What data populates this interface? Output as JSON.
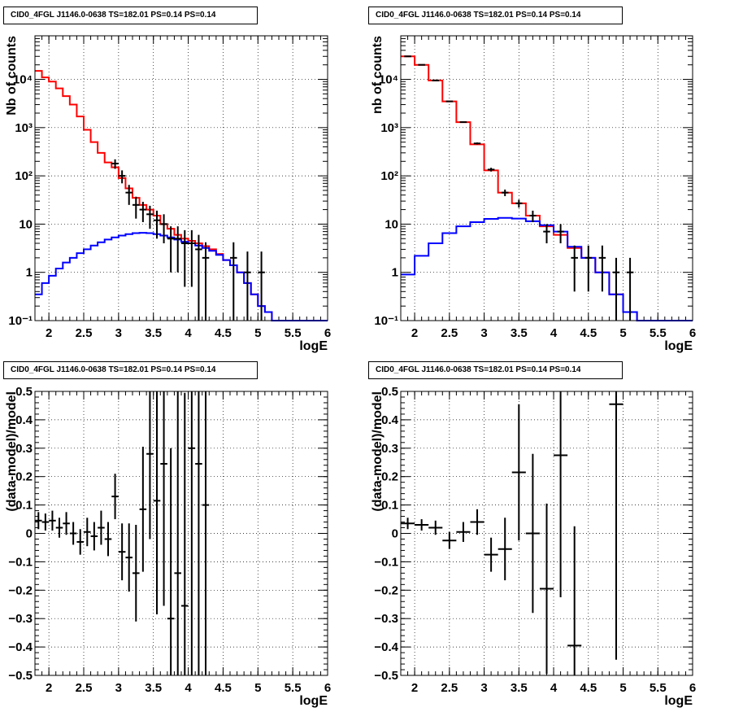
{
  "chart_data": [
    {
      "type": "line",
      "title": "CID0_4FGL J1146.0-0638 TS=182.01 PS=0.14 PS=0.14",
      "xlabel": "logE",
      "ylabel": "Nb of counts",
      "ylog": true,
      "xlim": [
        1.8,
        6.0
      ],
      "ylim": [
        0.1,
        80000
      ],
      "xticks": [
        2,
        2.5,
        3,
        3.5,
        4,
        4.5,
        5,
        5.5,
        6
      ],
      "xtick_labels": [
        "2",
        "2.5",
        "3",
        "3.5",
        "4",
        "4.5",
        "5",
        "5.5",
        "6"
      ],
      "yticks": [
        0.1,
        1,
        10,
        100,
        1000,
        10000
      ],
      "ytick_labels": [
        "10⁻¹",
        "1",
        "10",
        "10²",
        "10³",
        "10⁴"
      ],
      "grid": true,
      "bin_edges": [
        1.8,
        1.9,
        2.0,
        2.1,
        2.2,
        2.3,
        2.4,
        2.5,
        2.6,
        2.7,
        2.8,
        2.9,
        3.0,
        3.1,
        3.2,
        3.3,
        3.4,
        3.5,
        3.6,
        3.7,
        3.8,
        3.9,
        4.0,
        4.1,
        4.2,
        4.3,
        4.4,
        4.5,
        4.6,
        4.7,
        4.8,
        4.9,
        5.0,
        5.1,
        5.2,
        5.3,
        5.4,
        5.5,
        5.6,
        5.7,
        5.8,
        5.9,
        6.0
      ],
      "series": [
        {
          "color": "#ff0000",
          "style": "step",
          "values": [
            15000,
            11000,
            9000,
            6500,
            4500,
            3000,
            1700,
            900,
            500,
            300,
            190,
            150,
            90,
            55,
            35,
            25,
            20,
            15,
            10,
            8,
            6,
            5,
            4.5,
            4,
            3.5,
            3,
            2.4,
            1.8,
            1.4,
            1,
            0.6,
            0.35,
            0.2,
            0.15,
            0.1,
            0.1,
            0.1,
            0.1,
            0.1,
            0.1,
            0.1,
            0.1
          ]
        },
        {
          "color": "#0000ff",
          "style": "step",
          "values": [
            0.35,
            0.6,
            0.85,
            1.2,
            1.6,
            2.0,
            2.5,
            3.0,
            3.6,
            4.2,
            4.8,
            5.3,
            5.8,
            6.2,
            6.5,
            6.6,
            6.5,
            6.2,
            5.8,
            5.3,
            4.8,
            4.3,
            4.0,
            3.6,
            3.2,
            2.8,
            2.3,
            1.8,
            1.4,
            1,
            0.6,
            0.35,
            0.2,
            0.15,
            0.1,
            0.1,
            0.1,
            0.1,
            0.1,
            0.1,
            0.1,
            0.1
          ]
        },
        {
          "color": "#000000",
          "style": "points",
          "x": [
            2.95,
            3.05,
            3.15,
            3.25,
            3.35,
            3.45,
            3.55,
            3.65,
            3.75,
            3.85,
            3.95,
            4.05,
            4.15,
            4.25,
            4.65,
            4.85,
            5.05
          ],
          "values": [
            180,
            100,
            45,
            25,
            20,
            16,
            12,
            10,
            5,
            5,
            4,
            4,
            3,
            2,
            2,
            1,
            1
          ],
          "err": [
            40,
            30,
            20,
            12,
            9,
            8,
            7,
            6,
            4,
            4,
            3.5,
            3.5,
            3,
            2.2,
            2.2,
            1.7,
            1.7
          ]
        }
      ]
    },
    {
      "type": "line",
      "title": "CID0_4FGL J1146.0-0638 TS=182.01 PS=0.14 PS=0.14",
      "xlabel": "logE",
      "ylabel": "nb of counts",
      "ylog": true,
      "xlim": [
        1.8,
        6.0
      ],
      "ylim": [
        0.1,
        80000
      ],
      "xticks": [
        2,
        2.5,
        3,
        3.5,
        4,
        4.5,
        5,
        5.5,
        6
      ],
      "xtick_labels": [
        "2",
        "2.5",
        "3",
        "3.5",
        "4",
        "4.5",
        "5",
        "5.5",
        "6"
      ],
      "yticks": [
        0.1,
        1,
        10,
        100,
        1000,
        10000
      ],
      "ytick_labels": [
        "10⁻¹",
        "1",
        "10",
        "10²",
        "10³",
        "10⁴"
      ],
      "grid": true,
      "bin_edges": [
        1.8,
        2.0,
        2.2,
        2.4,
        2.6,
        2.8,
        3.0,
        3.2,
        3.4,
        3.6,
        3.8,
        4.0,
        4.2,
        4.4,
        4.6,
        4.8,
        5.0,
        5.2,
        5.4,
        5.6,
        5.8,
        6.0
      ],
      "series": [
        {
          "color": "#ff0000",
          "style": "step",
          "values": [
            30000,
            20000,
            9500,
            3500,
            1300,
            450,
            130,
            45,
            27,
            15,
            9,
            6,
            3.2,
            2,
            1,
            0.35,
            0.15,
            0.1,
            0.1,
            0.1,
            0.1
          ]
        },
        {
          "color": "#0000ff",
          "style": "step",
          "values": [
            0.9,
            2.2,
            4,
            6.5,
            9,
            11,
            12.8,
            13.5,
            13,
            11.5,
            9.5,
            7,
            3.4,
            2,
            1,
            0.35,
            0.15,
            0.1,
            0.1,
            0.1,
            0.1
          ]
        },
        {
          "color": "#000000",
          "style": "points",
          "x": [
            1.9,
            2.1,
            2.3,
            2.5,
            2.7,
            2.9,
            3.1,
            3.3,
            3.5,
            3.7,
            3.9,
            4.1,
            4.3,
            4.5,
            4.7,
            4.9,
            5.1
          ],
          "values": [
            30000,
            20000,
            9500,
            3500,
            1300,
            470,
            135,
            45,
            27,
            15,
            7,
            7,
            2,
            2,
            2,
            1,
            1
          ],
          "err": [
            170,
            140,
            100,
            60,
            36,
            22,
            12,
            7,
            5,
            4,
            3,
            3,
            1.6,
            1.6,
            1.6,
            1,
            1
          ]
        }
      ]
    },
    {
      "type": "scatter",
      "title": "CID0_4FGL J1146.0-0638 TS=182.01 PS=0.14 PS=0.14",
      "xlabel": "logE",
      "ylabel": "(data-model)/model",
      "xlim": [
        1.8,
        6.0
      ],
      "ylim": [
        -0.5,
        0.5
      ],
      "xticks": [
        2,
        2.5,
        3,
        3.5,
        4,
        4.5,
        5,
        5.5,
        6
      ],
      "xtick_labels": [
        "2",
        "2.5",
        "3",
        "3.5",
        "4",
        "4.5",
        "5",
        "5.5",
        "6"
      ],
      "yticks": [
        -0.5,
        -0.4,
        -0.3,
        -0.2,
        -0.1,
        0,
        0.1,
        0.2,
        0.3,
        0.4,
        0.5
      ],
      "ytick_labels": [
        "−0.5",
        "−0.4",
        "−0.3",
        "−0.2",
        "−0.1",
        "0",
        "0.1",
        "0.2",
        "0.3",
        "0.4",
        "0.5"
      ],
      "grid": true,
      "series": [
        {
          "color": "#000000",
          "xerr": 0.05,
          "x": [
            1.85,
            1.95,
            2.05,
            2.15,
            2.25,
            2.35,
            2.45,
            2.55,
            2.65,
            2.75,
            2.85,
            2.95,
            3.05,
            3.15,
            3.25,
            3.35,
            3.45,
            3.55,
            3.65,
            3.75,
            3.85,
            3.95,
            4.05,
            4.15,
            4.25
          ],
          "values": [
            0.045,
            0.04,
            0.045,
            0.02,
            0.035,
            0.0,
            -0.03,
            0.005,
            -0.01,
            0.02,
            -0.02,
            0.13,
            -0.065,
            -0.085,
            -0.14,
            0.085,
            0.28,
            0.115,
            0.245,
            -0.3,
            -0.14,
            -0.255,
            0.3,
            0.245,
            0.1
          ],
          "err": [
            0.03,
            0.03,
            0.035,
            0.035,
            0.04,
            0.04,
            0.045,
            0.05,
            0.05,
            0.06,
            0.06,
            0.08,
            0.1,
            0.12,
            0.17,
            0.22,
            0.3,
            0.4,
            0.5,
            0.6,
            0.7,
            0.75,
            0.8,
            0.8,
            0.8
          ]
        }
      ]
    },
    {
      "type": "scatter",
      "title": "CID0_4FGL J1146.0-0638 TS=182.01 PS=0.14 PS=0.14",
      "xlabel": "logE",
      "ylabel": "(data-model)/model",
      "xlim": [
        1.8,
        6.0
      ],
      "ylim": [
        -0.5,
        0.5
      ],
      "xticks": [
        2,
        2.5,
        3,
        3.5,
        4,
        4.5,
        5,
        5.5,
        6
      ],
      "xtick_labels": [
        "2",
        "2.5",
        "3",
        "3.5",
        "4",
        "4.5",
        "5",
        "5.5",
        "6"
      ],
      "yticks": [
        -0.5,
        -0.4,
        -0.3,
        -0.2,
        -0.1,
        0,
        0.1,
        0.2,
        0.3,
        0.4,
        0.5
      ],
      "ytick_labels": [
        "−0.5",
        "−0.4",
        "−0.3",
        "−0.2",
        "−0.1",
        "0",
        "0.1",
        "0.2",
        "0.3",
        "0.4",
        "0.5"
      ],
      "grid": true,
      "series": [
        {
          "color": "#000000",
          "xerr": 0.1,
          "x": [
            1.9,
            2.1,
            2.3,
            2.5,
            2.7,
            2.9,
            3.1,
            3.3,
            3.5,
            3.7,
            3.9,
            4.1,
            4.3,
            4.9
          ],
          "values": [
            0.035,
            0.03,
            0.02,
            -0.025,
            0.005,
            0.04,
            -0.075,
            -0.055,
            0.215,
            0.0,
            -0.195,
            0.275,
            -0.395,
            0.455
          ],
          "err": [
            0.02,
            0.02,
            0.025,
            0.03,
            0.035,
            0.045,
            0.06,
            0.11,
            0.24,
            0.28,
            0.3,
            0.5,
            0.42,
            0.9
          ]
        }
      ]
    }
  ]
}
